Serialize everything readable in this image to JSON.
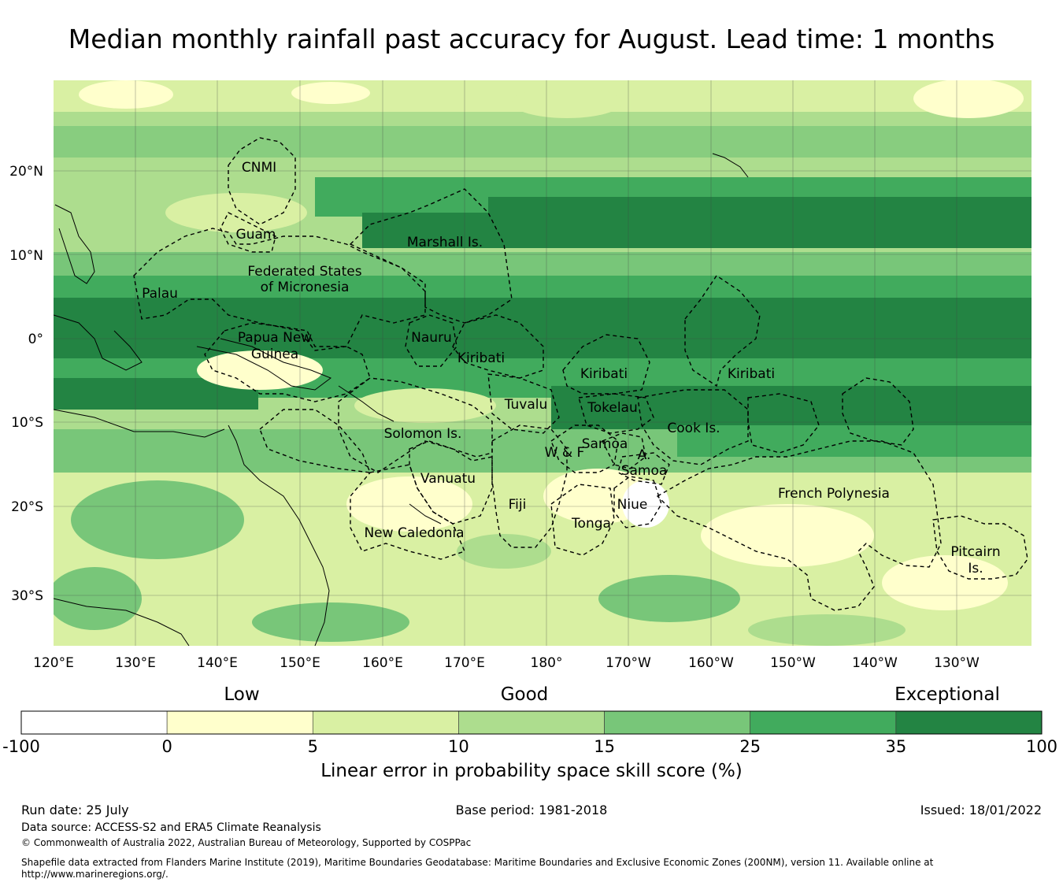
{
  "title": "Median monthly rainfall past accuracy for August. Lead time: 1 months",
  "map": {
    "lat_labels": [
      "20°N",
      "10°N",
      "0°",
      "10°S",
      "20°S",
      "30°S"
    ],
    "lon_labels": [
      "120°E",
      "130°E",
      "140°E",
      "150°E",
      "160°E",
      "170°E",
      "180°",
      "170°W",
      "160°W",
      "150°W",
      "140°W",
      "130°W"
    ],
    "regions": {
      "cnmi": "CNMI",
      "guam": "Guam",
      "marshall": "Marshall Is.",
      "fsm_1": "Federated States",
      "fsm_2": "of Micronesia",
      "palau": "Palau",
      "png_1": "Papua New",
      "png_2": "Guinea",
      "nauru": "Nauru",
      "kiribati_w": "Kiribati",
      "kiribati_c": "Kiribati",
      "kiribati_e": "Kiribati",
      "tuvalu": "Tuvalu",
      "tokelau": "Tokelau",
      "cook": "Cook Is.",
      "solomon": "Solomon Is.",
      "samoa": "Samoa",
      "wf": "W & F",
      "asamoa_1": "A.",
      "asamoa_2": "Samoa",
      "vanuatu": "Vanuatu",
      "fiji": "Fiji",
      "niue": "Niue",
      "tonga": "Tonga",
      "french_poly": "French Polynesia",
      "pitcairn_1": "Pitcairn",
      "pitcairn_2": "Is.",
      "new_caledonia": "New Caledonia"
    }
  },
  "colorbar": {
    "category_labels": [
      "Low",
      "Good",
      "Exceptional"
    ],
    "ticks": [
      "-100",
      "0",
      "5",
      "10",
      "15",
      "25",
      "35",
      "100"
    ],
    "colors": [
      "#ffffff",
      "#ffffcc",
      "#d9f0a3",
      "#addd8e",
      "#78c679",
      "#41ab5d",
      "#238443"
    ],
    "xlabel": "Linear error in probability space skill score (%)"
  },
  "footer": {
    "run_date": "Run date: 25 July",
    "base_period": "Base period: 1981-2018",
    "issued": "Issued: 18/01/2022",
    "data_source": "Data source: ACCESS-S2 and ERA5 Climate Reanalysis",
    "copyright": "© Commonwealth of Australia 2022, Australian Bureau of Meteorology, Supported by COSPPac",
    "shapefile_1": "Shapefile data extracted from Flanders Marine Institute (2019), Maritime Boundaries Geodatabase: Maritime Boundaries and Exclusive Economic Zones (200NM), version 11. Available online at",
    "shapefile_2": "http://www.marineregions.org/."
  }
}
